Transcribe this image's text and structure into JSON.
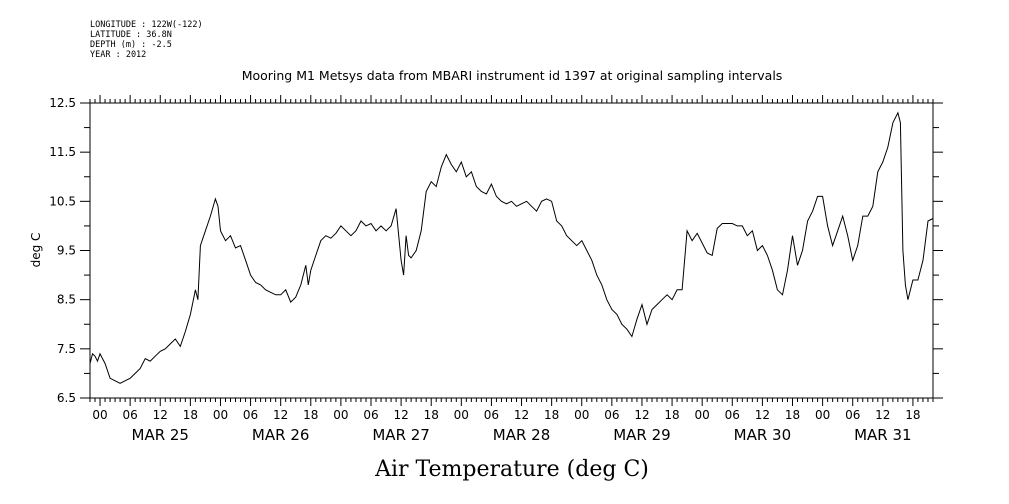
{
  "meta_lines": {
    "longitude": "LONGITUDE : 122W(-122)",
    "latitude": "LATITUDE : 36.8N",
    "depth": "DEPTH (m) : -2.5",
    "year": "YEAR : 2012"
  },
  "chart_data": {
    "type": "line",
    "title": "Mooring M1 Metsys data from MBARI instrument id 1397 at original sampling intervals",
    "xlabel": "Air Temperature (deg C)",
    "ylabel": "deg C",
    "ylim": [
      6.5,
      12.5
    ],
    "yticks": [
      "6.5",
      "7.5",
      "8.5",
      "9.5",
      "10.5",
      "11.5",
      "12.5"
    ],
    "xlim": [
      "2012-03-24T22:00",
      "2012-03-31T22:00"
    ],
    "hour_ticks": [
      "00",
      "06",
      "12",
      "18"
    ],
    "day_labels": [
      "MAR 25",
      "MAR 26",
      "MAR 27",
      "MAR 28",
      "MAR 29",
      "MAR 30",
      "MAR 31"
    ],
    "grid": false,
    "series": [
      {
        "points": [
          [
            "2012-03-24T22:00",
            7.2
          ],
          [
            "2012-03-24T22:30",
            7.4
          ],
          [
            "2012-03-24T23:00",
            7.35
          ],
          [
            "2012-03-24T23:30",
            7.25
          ],
          [
            "2012-03-25T00:00",
            7.4
          ],
          [
            "2012-03-25T01:00",
            7.2
          ],
          [
            "2012-03-25T02:00",
            6.9
          ],
          [
            "2012-03-25T03:00",
            6.85
          ],
          [
            "2012-03-25T04:00",
            6.8
          ],
          [
            "2012-03-25T05:00",
            6.85
          ],
          [
            "2012-03-25T06:00",
            6.9
          ],
          [
            "2012-03-25T07:00",
            7.0
          ],
          [
            "2012-03-25T08:00",
            7.1
          ],
          [
            "2012-03-25T09:00",
            7.3
          ],
          [
            "2012-03-25T10:00",
            7.25
          ],
          [
            "2012-03-25T11:00",
            7.35
          ],
          [
            "2012-03-25T12:00",
            7.45
          ],
          [
            "2012-03-25T13:00",
            7.5
          ],
          [
            "2012-03-25T14:00",
            7.6
          ],
          [
            "2012-03-25T15:00",
            7.7
          ],
          [
            "2012-03-25T16:00",
            7.55
          ],
          [
            "2012-03-25T17:00",
            7.85
          ],
          [
            "2012-03-25T18:00",
            8.2
          ],
          [
            "2012-03-25T19:00",
            8.7
          ],
          [
            "2012-03-25T19:30",
            8.5
          ],
          [
            "2012-03-25T20:00",
            9.6
          ],
          [
            "2012-03-25T21:00",
            9.9
          ],
          [
            "2012-03-25T22:00",
            10.2
          ],
          [
            "2012-03-25T23:00",
            10.55
          ],
          [
            "2012-03-25T23:30",
            10.4
          ],
          [
            "2012-03-26T00:00",
            9.9
          ],
          [
            "2012-03-26T01:00",
            9.7
          ],
          [
            "2012-03-26T02:00",
            9.8
          ],
          [
            "2012-03-26T03:00",
            9.55
          ],
          [
            "2012-03-26T04:00",
            9.6
          ],
          [
            "2012-03-26T05:00",
            9.3
          ],
          [
            "2012-03-26T06:00",
            9.0
          ],
          [
            "2012-03-26T07:00",
            8.85
          ],
          [
            "2012-03-26T08:00",
            8.8
          ],
          [
            "2012-03-26T09:00",
            8.7
          ],
          [
            "2012-03-26T10:00",
            8.65
          ],
          [
            "2012-03-26T11:00",
            8.6
          ],
          [
            "2012-03-26T12:00",
            8.6
          ],
          [
            "2012-03-26T13:00",
            8.7
          ],
          [
            "2012-03-26T14:00",
            8.45
          ],
          [
            "2012-03-26T15:00",
            8.55
          ],
          [
            "2012-03-26T16:00",
            8.8
          ],
          [
            "2012-03-26T17:00",
            9.2
          ],
          [
            "2012-03-26T17:30",
            8.8
          ],
          [
            "2012-03-26T18:00",
            9.1
          ],
          [
            "2012-03-26T19:00",
            9.4
          ],
          [
            "2012-03-26T20:00",
            9.7
          ],
          [
            "2012-03-26T21:00",
            9.8
          ],
          [
            "2012-03-26T22:00",
            9.75
          ],
          [
            "2012-03-26T23:00",
            9.85
          ],
          [
            "2012-03-27T00:00",
            10.0
          ],
          [
            "2012-03-27T01:00",
            9.9
          ],
          [
            "2012-03-27T02:00",
            9.8
          ],
          [
            "2012-03-27T03:00",
            9.9
          ],
          [
            "2012-03-27T04:00",
            10.1
          ],
          [
            "2012-03-27T05:00",
            10.0
          ],
          [
            "2012-03-27T06:00",
            10.05
          ],
          [
            "2012-03-27T07:00",
            9.9
          ],
          [
            "2012-03-27T08:00",
            10.0
          ],
          [
            "2012-03-27T09:00",
            9.9
          ],
          [
            "2012-03-27T10:00",
            10.0
          ],
          [
            "2012-03-27T11:00",
            10.35
          ],
          [
            "2012-03-27T12:00",
            9.3
          ],
          [
            "2012-03-27T12:30",
            9.0
          ],
          [
            "2012-03-27T13:00",
            9.8
          ],
          [
            "2012-03-27T13:30",
            9.4
          ],
          [
            "2012-03-27T14:00",
            9.35
          ],
          [
            "2012-03-27T15:00",
            9.5
          ],
          [
            "2012-03-27T16:00",
            9.9
          ],
          [
            "2012-03-27T17:00",
            10.7
          ],
          [
            "2012-03-27T18:00",
            10.9
          ],
          [
            "2012-03-27T19:00",
            10.8
          ],
          [
            "2012-03-27T20:00",
            11.2
          ],
          [
            "2012-03-27T21:00",
            11.45
          ],
          [
            "2012-03-27T22:00",
            11.25
          ],
          [
            "2012-03-27T23:00",
            11.1
          ],
          [
            "2012-03-28T00:00",
            11.3
          ],
          [
            "2012-03-28T01:00",
            11.0
          ],
          [
            "2012-03-28T02:00",
            11.1
          ],
          [
            "2012-03-28T03:00",
            10.8
          ],
          [
            "2012-03-28T04:00",
            10.7
          ],
          [
            "2012-03-28T05:00",
            10.65
          ],
          [
            "2012-03-28T06:00",
            10.85
          ],
          [
            "2012-03-28T07:00",
            10.6
          ],
          [
            "2012-03-28T08:00",
            10.5
          ],
          [
            "2012-03-28T09:00",
            10.45
          ],
          [
            "2012-03-28T10:00",
            10.5
          ],
          [
            "2012-03-28T11:00",
            10.4
          ],
          [
            "2012-03-28T12:00",
            10.45
          ],
          [
            "2012-03-28T13:00",
            10.5
          ],
          [
            "2012-03-28T14:00",
            10.4
          ],
          [
            "2012-03-28T15:00",
            10.3
          ],
          [
            "2012-03-28T16:00",
            10.5
          ],
          [
            "2012-03-28T17:00",
            10.55
          ],
          [
            "2012-03-28T18:00",
            10.5
          ],
          [
            "2012-03-28T19:00",
            10.1
          ],
          [
            "2012-03-28T20:00",
            10.0
          ],
          [
            "2012-03-28T21:00",
            9.8
          ],
          [
            "2012-03-28T22:00",
            9.7
          ],
          [
            "2012-03-28T23:00",
            9.6
          ],
          [
            "2012-03-29T00:00",
            9.7
          ],
          [
            "2012-03-29T01:00",
            9.5
          ],
          [
            "2012-03-29T02:00",
            9.3
          ],
          [
            "2012-03-29T03:00",
            9.0
          ],
          [
            "2012-03-29T04:00",
            8.8
          ],
          [
            "2012-03-29T05:00",
            8.5
          ],
          [
            "2012-03-29T06:00",
            8.3
          ],
          [
            "2012-03-29T07:00",
            8.2
          ],
          [
            "2012-03-29T08:00",
            8.0
          ],
          [
            "2012-03-29T09:00",
            7.9
          ],
          [
            "2012-03-29T10:00",
            7.75
          ],
          [
            "2012-03-29T11:00",
            8.1
          ],
          [
            "2012-03-29T12:00",
            8.4
          ],
          [
            "2012-03-29T13:00",
            8.0
          ],
          [
            "2012-03-29T14:00",
            8.3
          ],
          [
            "2012-03-29T15:00",
            8.4
          ],
          [
            "2012-03-29T16:00",
            8.5
          ],
          [
            "2012-03-29T17:00",
            8.6
          ],
          [
            "2012-03-29T18:00",
            8.5
          ],
          [
            "2012-03-29T19:00",
            8.7
          ],
          [
            "2012-03-29T20:00",
            8.7
          ],
          [
            "2012-03-29T21:00",
            9.9
          ],
          [
            "2012-03-29T22:00",
            9.7
          ],
          [
            "2012-03-29T23:00",
            9.85
          ],
          [
            "2012-03-30T00:00",
            9.65
          ],
          [
            "2012-03-30T01:00",
            9.45
          ],
          [
            "2012-03-30T02:00",
            9.4
          ],
          [
            "2012-03-30T03:00",
            9.95
          ],
          [
            "2012-03-30T04:00",
            10.05
          ],
          [
            "2012-03-30T05:00",
            10.05
          ],
          [
            "2012-03-30T06:00",
            10.05
          ],
          [
            "2012-03-30T07:00",
            10.0
          ],
          [
            "2012-03-30T08:00",
            10.0
          ],
          [
            "2012-03-30T09:00",
            9.8
          ],
          [
            "2012-03-30T10:00",
            9.9
          ],
          [
            "2012-03-30T11:00",
            9.5
          ],
          [
            "2012-03-30T12:00",
            9.6
          ],
          [
            "2012-03-30T13:00",
            9.4
          ],
          [
            "2012-03-30T14:00",
            9.1
          ],
          [
            "2012-03-30T15:00",
            8.7
          ],
          [
            "2012-03-30T16:00",
            8.6
          ],
          [
            "2012-03-30T17:00",
            9.1
          ],
          [
            "2012-03-30T18:00",
            9.8
          ],
          [
            "2012-03-30T19:00",
            9.2
          ],
          [
            "2012-03-30T20:00",
            9.5
          ],
          [
            "2012-03-30T21:00",
            10.1
          ],
          [
            "2012-03-30T22:00",
            10.3
          ],
          [
            "2012-03-30T23:00",
            10.6
          ],
          [
            "2012-03-31T00:00",
            10.6
          ],
          [
            "2012-03-31T01:00",
            10.0
          ],
          [
            "2012-03-31T02:00",
            9.6
          ],
          [
            "2012-03-31T03:00",
            9.9
          ],
          [
            "2012-03-31T04:00",
            10.2
          ],
          [
            "2012-03-31T05:00",
            9.8
          ],
          [
            "2012-03-31T06:00",
            9.3
          ],
          [
            "2012-03-31T07:00",
            9.6
          ],
          [
            "2012-03-31T08:00",
            10.2
          ],
          [
            "2012-03-31T09:00",
            10.2
          ],
          [
            "2012-03-31T10:00",
            10.4
          ],
          [
            "2012-03-31T11:00",
            11.1
          ],
          [
            "2012-03-31T12:00",
            11.3
          ],
          [
            "2012-03-31T13:00",
            11.6
          ],
          [
            "2012-03-31T14:00",
            12.1
          ],
          [
            "2012-03-31T15:00",
            12.3
          ],
          [
            "2012-03-31T15:30",
            12.1
          ],
          [
            "2012-03-31T16:00",
            9.5
          ],
          [
            "2012-03-31T16:30",
            8.8
          ],
          [
            "2012-03-31T17:00",
            8.5
          ],
          [
            "2012-03-31T18:00",
            8.9
          ],
          [
            "2012-03-31T19:00",
            8.9
          ],
          [
            "2012-03-31T20:00",
            9.3
          ],
          [
            "2012-03-31T21:00",
            10.1
          ],
          [
            "2012-03-31T22:00",
            10.15
          ]
        ]
      }
    ]
  },
  "colors": {
    "line": "#000000",
    "axis": "#000000",
    "background": "#ffffff"
  }
}
